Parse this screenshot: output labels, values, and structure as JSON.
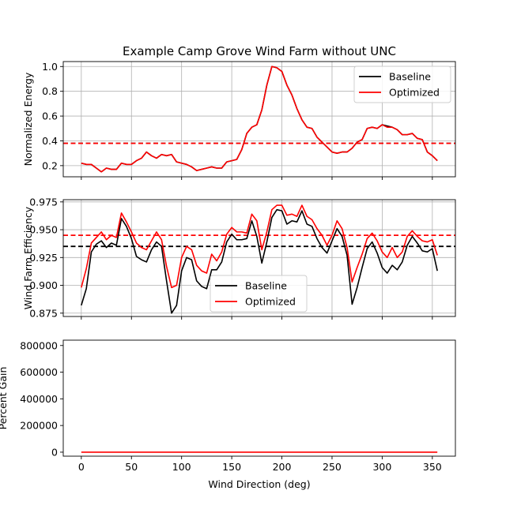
{
  "title": "Example Camp Grove Wind Farm without UNC",
  "colors": {
    "baseline": "#000000",
    "optimized": "#ff0000",
    "grid": "#b0b0b0"
  },
  "chart_data": [
    {
      "type": "line",
      "ylabel": "Normalized Energy",
      "xlim": [
        -18,
        373
      ],
      "ylim": [
        0.11,
        1.04
      ],
      "yticks": [
        0.2,
        0.4,
        0.6,
        0.8,
        1.0
      ],
      "ytick_labels": [
        "0.2",
        "0.4",
        "0.6",
        "0.8",
        "1.0"
      ],
      "xticks": [
        0,
        50,
        100,
        150,
        200,
        250,
        300,
        350
      ],
      "show_xtick_labels": false,
      "grid": true,
      "legend": {
        "placement": "top-right",
        "entries": [
          "Baseline",
          "Optimized"
        ]
      },
      "hlines": [
        {
          "series": "Baseline",
          "y": 0.38
        },
        {
          "series": "Optimized",
          "y": 0.38
        }
      ],
      "x": [
        0,
        5,
        10,
        15,
        20,
        25,
        30,
        35,
        40,
        45,
        50,
        55,
        60,
        65,
        70,
        75,
        80,
        85,
        90,
        95,
        100,
        105,
        110,
        115,
        120,
        125,
        130,
        135,
        140,
        145,
        150,
        155,
        160,
        165,
        170,
        175,
        180,
        185,
        190,
        195,
        200,
        205,
        210,
        215,
        220,
        225,
        230,
        235,
        240,
        245,
        250,
        255,
        260,
        265,
        270,
        275,
        280,
        285,
        290,
        295,
        300,
        305,
        310,
        315,
        320,
        325,
        330,
        335,
        340,
        345,
        350,
        355
      ],
      "series": [
        {
          "name": "Baseline",
          "values": [
            0.22,
            0.21,
            0.21,
            0.18,
            0.15,
            0.18,
            0.17,
            0.17,
            0.22,
            0.21,
            0.21,
            0.24,
            0.26,
            0.31,
            0.28,
            0.26,
            0.29,
            0.28,
            0.29,
            0.23,
            0.22,
            0.21,
            0.19,
            0.16,
            0.17,
            0.18,
            0.19,
            0.18,
            0.18,
            0.23,
            0.24,
            0.25,
            0.33,
            0.46,
            0.51,
            0.53,
            0.65,
            0.85,
            1.0,
            0.99,
            0.96,
            0.85,
            0.77,
            0.66,
            0.57,
            0.51,
            0.5,
            0.43,
            0.39,
            0.35,
            0.31,
            0.3,
            0.31,
            0.31,
            0.34,
            0.39,
            0.41,
            0.5,
            0.51,
            0.5,
            0.53,
            0.52,
            0.51,
            0.49,
            0.45,
            0.45,
            0.46,
            0.42,
            0.41,
            0.31,
            0.28,
            0.24
          ]
        },
        {
          "name": "Optimized",
          "values": [
            0.22,
            0.21,
            0.21,
            0.18,
            0.15,
            0.18,
            0.17,
            0.17,
            0.22,
            0.21,
            0.21,
            0.24,
            0.26,
            0.31,
            0.28,
            0.26,
            0.29,
            0.28,
            0.29,
            0.23,
            0.22,
            0.21,
            0.19,
            0.16,
            0.17,
            0.18,
            0.19,
            0.18,
            0.18,
            0.23,
            0.24,
            0.25,
            0.33,
            0.46,
            0.51,
            0.53,
            0.65,
            0.85,
            1.0,
            0.99,
            0.96,
            0.85,
            0.77,
            0.66,
            0.57,
            0.51,
            0.5,
            0.43,
            0.39,
            0.35,
            0.31,
            0.3,
            0.31,
            0.31,
            0.34,
            0.39,
            0.41,
            0.5,
            0.51,
            0.5,
            0.53,
            0.51,
            0.51,
            0.49,
            0.45,
            0.45,
            0.46,
            0.42,
            0.41,
            0.31,
            0.28,
            0.24
          ]
        }
      ]
    },
    {
      "type": "line",
      "ylabel": "Wind Farm Efficiency",
      "xlim": [
        -18,
        373
      ],
      "ylim": [
        0.872,
        0.977
      ],
      "yticks": [
        0.875,
        0.9,
        0.925,
        0.95,
        0.975
      ],
      "ytick_labels": [
        "0.875",
        "0.900",
        "0.925",
        "0.950",
        "0.975"
      ],
      "xticks": [
        0,
        50,
        100,
        150,
        200,
        250,
        300,
        350
      ],
      "show_xtick_labels": false,
      "grid": true,
      "legend": {
        "placement": "lower-center",
        "entries": [
          "Baseline",
          "Optimized"
        ]
      },
      "hlines": [
        {
          "series": "Baseline",
          "y": 0.935
        },
        {
          "series": "Optimized",
          "y": 0.945
        }
      ],
      "x": [
        0,
        5,
        10,
        15,
        20,
        25,
        30,
        35,
        40,
        45,
        50,
        55,
        60,
        65,
        70,
        75,
        80,
        85,
        90,
        95,
        100,
        105,
        110,
        115,
        120,
        125,
        130,
        135,
        140,
        145,
        150,
        155,
        160,
        165,
        170,
        175,
        180,
        185,
        190,
        195,
        200,
        205,
        210,
        215,
        220,
        225,
        230,
        235,
        240,
        245,
        250,
        255,
        260,
        265,
        270,
        275,
        280,
        285,
        290,
        295,
        300,
        305,
        310,
        315,
        320,
        325,
        330,
        335,
        340,
        345,
        350,
        355
      ],
      "series": [
        {
          "name": "Baseline",
          "values": [
            0.882,
            0.897,
            0.93,
            0.937,
            0.94,
            0.934,
            0.938,
            0.936,
            0.96,
            0.953,
            0.942,
            0.926,
            0.923,
            0.921,
            0.932,
            0.939,
            0.935,
            0.904,
            0.875,
            0.882,
            0.913,
            0.925,
            0.923,
            0.904,
            0.899,
            0.897,
            0.914,
            0.914,
            0.921,
            0.939,
            0.946,
            0.941,
            0.941,
            0.942,
            0.958,
            0.944,
            0.92,
            0.939,
            0.961,
            0.968,
            0.967,
            0.955,
            0.958,
            0.957,
            0.967,
            0.955,
            0.953,
            0.942,
            0.934,
            0.929,
            0.94,
            0.951,
            0.944,
            0.927,
            0.883,
            0.898,
            0.916,
            0.933,
            0.939,
            0.929,
            0.916,
            0.911,
            0.918,
            0.914,
            0.921,
            0.936,
            0.944,
            0.938,
            0.931,
            0.93,
            0.933,
            0.913
          ]
        },
        {
          "name": "Optimized",
          "values": [
            0.898,
            0.915,
            0.938,
            0.943,
            0.948,
            0.941,
            0.945,
            0.943,
            0.965,
            0.957,
            0.948,
            0.938,
            0.934,
            0.932,
            0.94,
            0.948,
            0.941,
            0.917,
            0.898,
            0.9,
            0.925,
            0.935,
            0.932,
            0.918,
            0.913,
            0.911,
            0.928,
            0.922,
            0.93,
            0.946,
            0.952,
            0.948,
            0.948,
            0.947,
            0.964,
            0.958,
            0.932,
            0.948,
            0.968,
            0.972,
            0.972,
            0.963,
            0.964,
            0.962,
            0.972,
            0.962,
            0.959,
            0.951,
            0.945,
            0.936,
            0.945,
            0.958,
            0.951,
            0.934,
            0.903,
            0.916,
            0.928,
            0.942,
            0.947,
            0.94,
            0.93,
            0.925,
            0.934,
            0.925,
            0.93,
            0.944,
            0.949,
            0.944,
            0.94,
            0.939,
            0.941,
            0.927
          ]
        }
      ]
    },
    {
      "type": "line",
      "ylabel": "Percent Gain",
      "xlabel": "Wind Direction (deg)",
      "xlim": [
        -18,
        373
      ],
      "ylim": [
        -30000,
        840000
      ],
      "yticks": [
        0,
        200000,
        400000,
        600000,
        800000
      ],
      "ytick_labels": [
        "0",
        "200000",
        "400000",
        "600000",
        "800000"
      ],
      "xticks": [
        0,
        50,
        100,
        150,
        200,
        250,
        300,
        350
      ],
      "xtick_labels": [
        "0",
        "50",
        "100",
        "150",
        "200",
        "250",
        "300",
        "350"
      ],
      "show_xtick_labels": true,
      "grid": false,
      "x": [
        0,
        355
      ],
      "series": [
        {
          "name": "Optimized",
          "values": [
            0,
            0
          ]
        }
      ]
    }
  ]
}
